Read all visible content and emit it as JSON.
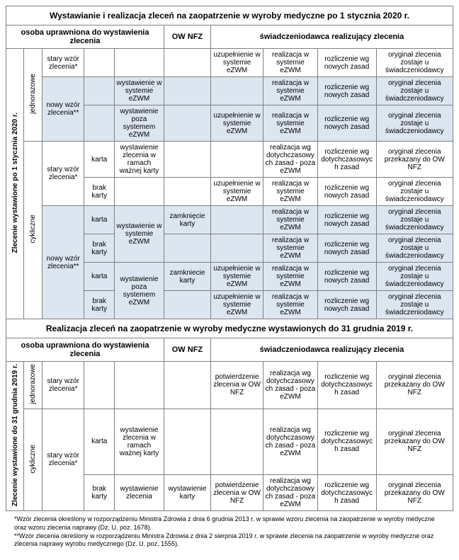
{
  "title1": "Wystawianie i realizacja zleceń na zaopatrzenie w wyroby medyczne po 1 stycznia 2020 r.",
  "title2": "Realizacja zleceń na zaopatrzenie w wyroby medyczne wystawionych do 31 grudnia 2019 r.",
  "hdr_osoba": "osoba uprawniona do wystawienia zlecenia",
  "hdr_ow": "OW NFZ",
  "hdr_swiad": "świadczeniodawca realizujący zlecenia",
  "side2020": "Zlecenie wystawione po 1 stycznia 2020 r.",
  "side2019": "Zlecenie wystawione do 31 grudnia 2019 r.",
  "jednorazowe": "jednorazowe",
  "cykliczne": "cykliczne",
  "stary": "stary wzór zlecenia*",
  "nowy": "nowy wzór zlecenia**",
  "karta": "karta",
  "brak_karty": "brak karty",
  "wyst_ezwm": "wystawienie w systemie eZWM",
  "wyst_poza": "wystawienie poza systemem eZWM",
  "wyst_ramach": "wystawienie zlecenia w ramach ważnej karty",
  "wyst_zlec": "wystawienie zlecenia",
  "zamkniecie": "zamknięcie karty",
  "zamkniecie2": "zamkniecie karty",
  "wystaw_ekarty": "wystawienie karty",
  "uzup_ezwm": "uzupełnienie w systemie eZWM",
  "potw_ow": "potwierdzenie zlecenia w OW NFZ",
  "real_ezwm": "realizacja w systemie eZWM",
  "real_poza": "realizacja wg dotychczasowych zasad - poza eZWM",
  "rozl_nowe": "rozliczenie wg nowych zasad",
  "rozl_dotych": "rozliczenie wg dotychczasowych zasad",
  "rozl_dotych_sp": "rozliczenie wg dotychczasowych  zasad",
  "oryg_zostaje": "oryginał zlecenia zostaje u świadczeniodawcy",
  "oryg_ow": "oryginał zlecenia przekazany do OW NFZ",
  "foot1": "*Wzór zlecenia określony w rozporządzeniu Ministra Zdrowia z dnia 6 grudnia 2013 r. w sprawie wzoru zlecenia na zaopatrzenie w wyroby medyczne oraz wzoru zlecenia naprawy (Dz. U. poz. 1678).",
  "foot2": "**Wzór zlecenia określony w rozporządzeniu Ministra Zdrowia z dnia 2 sierpnia 2019 r. w sprawie zlecenia na zaopatrzenie w wyroby medyczne oraz zlecenia naprawy wyrobu medycznego (Dz. U. poz. 1555)."
}
